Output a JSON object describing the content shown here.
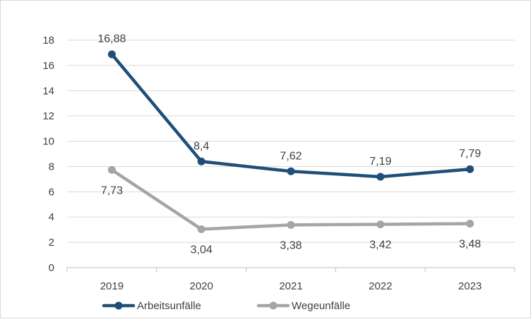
{
  "chart_data": {
    "type": "line",
    "categories": [
      "2019",
      "2020",
      "2021",
      "2022",
      "2023"
    ],
    "ylim": [
      0,
      18
    ],
    "yticks": [
      "0",
      "2",
      "4",
      "6",
      "8",
      "10",
      "12",
      "14",
      "16",
      "18"
    ],
    "grid": true,
    "legend_position": "bottom-left",
    "series": [
      {
        "name": "Arbeitsunfälle",
        "color": "#1f4e79",
        "values": [
          16.88,
          8.4,
          7.62,
          7.19,
          7.79
        ],
        "labels": [
          "16,88",
          "8,4",
          "7,62",
          "7,19",
          "7,79"
        ],
        "label_position": "above"
      },
      {
        "name": "Wegeunfälle",
        "color": "#a5a5a5",
        "values": [
          7.73,
          3.04,
          3.38,
          3.42,
          3.48
        ],
        "labels": [
          "7,73",
          "3,04",
          "3,38",
          "3,42",
          "3,48"
        ],
        "label_position": "below"
      }
    ]
  }
}
